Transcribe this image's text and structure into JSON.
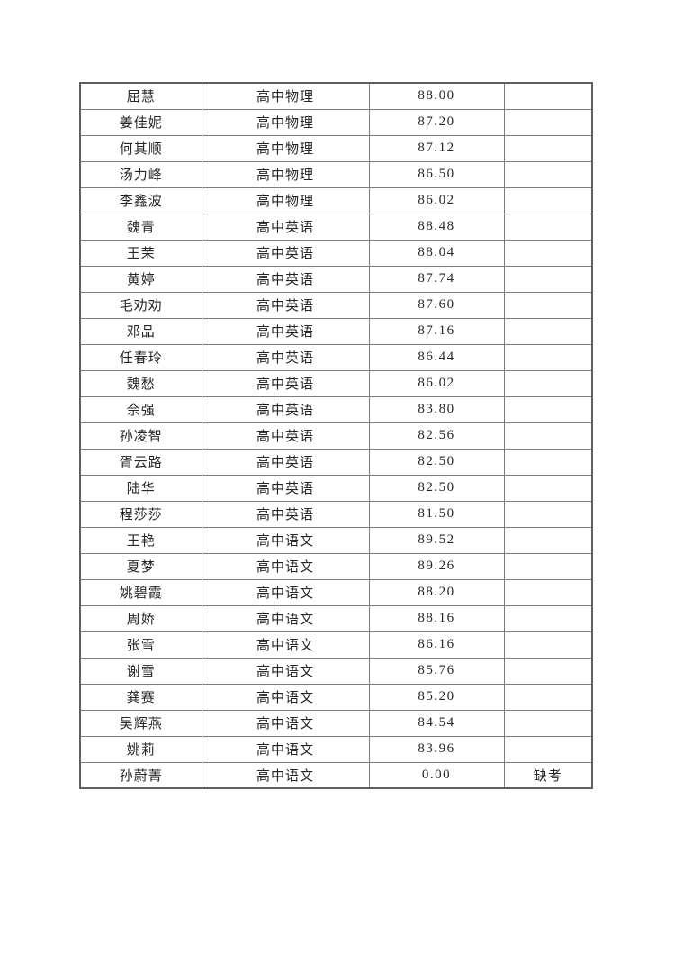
{
  "document": {
    "kind": "score-table-page",
    "background_color": "#ffffff",
    "text_color": "#262626",
    "border_color": "#7d7d7d",
    "absent_label": "缺考"
  },
  "table": {
    "column_keys": [
      "name",
      "subject",
      "score",
      "remark"
    ],
    "rows": [
      {
        "name": "屈慧",
        "subject": "高中物理",
        "score": "88.00",
        "remark": ""
      },
      {
        "name": "姜佳妮",
        "subject": "高中物理",
        "score": "87.20",
        "remark": ""
      },
      {
        "name": "何其顺",
        "subject": "高中物理",
        "score": "87.12",
        "remark": ""
      },
      {
        "name": "汤力峰",
        "subject": "高中物理",
        "score": "86.50",
        "remark": ""
      },
      {
        "name": "李鑫波",
        "subject": "高中物理",
        "score": "86.02",
        "remark": ""
      },
      {
        "name": "魏青",
        "subject": "高中英语",
        "score": "88.48",
        "remark": ""
      },
      {
        "name": "王茉",
        "subject": "高中英语",
        "score": "88.04",
        "remark": ""
      },
      {
        "name": "黄婷",
        "subject": "高中英语",
        "score": "87.74",
        "remark": ""
      },
      {
        "name": "毛劝劝",
        "subject": "高中英语",
        "score": "87.60",
        "remark": ""
      },
      {
        "name": "邓品",
        "subject": "高中英语",
        "score": "87.16",
        "remark": ""
      },
      {
        "name": "任春玲",
        "subject": "高中英语",
        "score": "86.44",
        "remark": ""
      },
      {
        "name": "魏愁",
        "subject": "高中英语",
        "score": "86.02",
        "remark": ""
      },
      {
        "name": "佘强",
        "subject": "高中英语",
        "score": "83.80",
        "remark": ""
      },
      {
        "name": "孙凌智",
        "subject": "高中英语",
        "score": "82.56",
        "remark": ""
      },
      {
        "name": "胥云路",
        "subject": "高中英语",
        "score": "82.50",
        "remark": ""
      },
      {
        "name": "陆华",
        "subject": "高中英语",
        "score": "82.50",
        "remark": ""
      },
      {
        "name": "程莎莎",
        "subject": "高中英语",
        "score": "81.50",
        "remark": ""
      },
      {
        "name": "王艳",
        "subject": "高中语文",
        "score": "89.52",
        "remark": ""
      },
      {
        "name": "夏梦",
        "subject": "高中语文",
        "score": "89.26",
        "remark": ""
      },
      {
        "name": "姚碧霞",
        "subject": "高中语文",
        "score": "88.20",
        "remark": ""
      },
      {
        "name": "周娇",
        "subject": "高中语文",
        "score": "88.16",
        "remark": ""
      },
      {
        "name": "张雪",
        "subject": "高中语文",
        "score": "86.16",
        "remark": ""
      },
      {
        "name": "谢雪",
        "subject": "高中语文",
        "score": "85.76",
        "remark": ""
      },
      {
        "name": "龚赛",
        "subject": "高中语文",
        "score": "85.20",
        "remark": ""
      },
      {
        "name": "吴辉燕",
        "subject": "高中语文",
        "score": "84.54",
        "remark": ""
      },
      {
        "name": "姚莉",
        "subject": "高中语文",
        "score": "83.96",
        "remark": ""
      },
      {
        "name": "孙蔚菁",
        "subject": "高中语文",
        "score": "0.00",
        "remark": "缺考"
      }
    ]
  }
}
